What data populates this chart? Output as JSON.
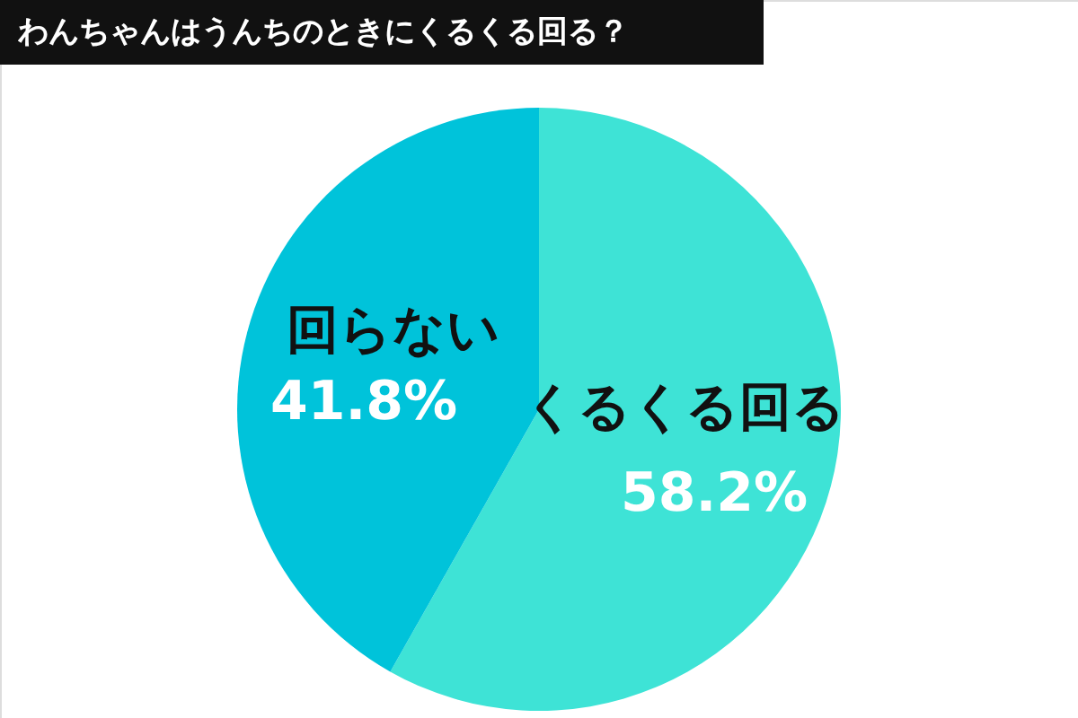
{
  "chart_data": {
    "type": "pie",
    "title": "わんちゃんはうんちのときにくるくる回る？",
    "categories": [
      "くるくる回る",
      "回らない"
    ],
    "values": [
      58.2,
      41.8
    ],
    "value_labels": [
      "58.2%",
      "41.8%"
    ],
    "colors": [
      "#3ee3d6",
      "#00c3da"
    ]
  }
}
